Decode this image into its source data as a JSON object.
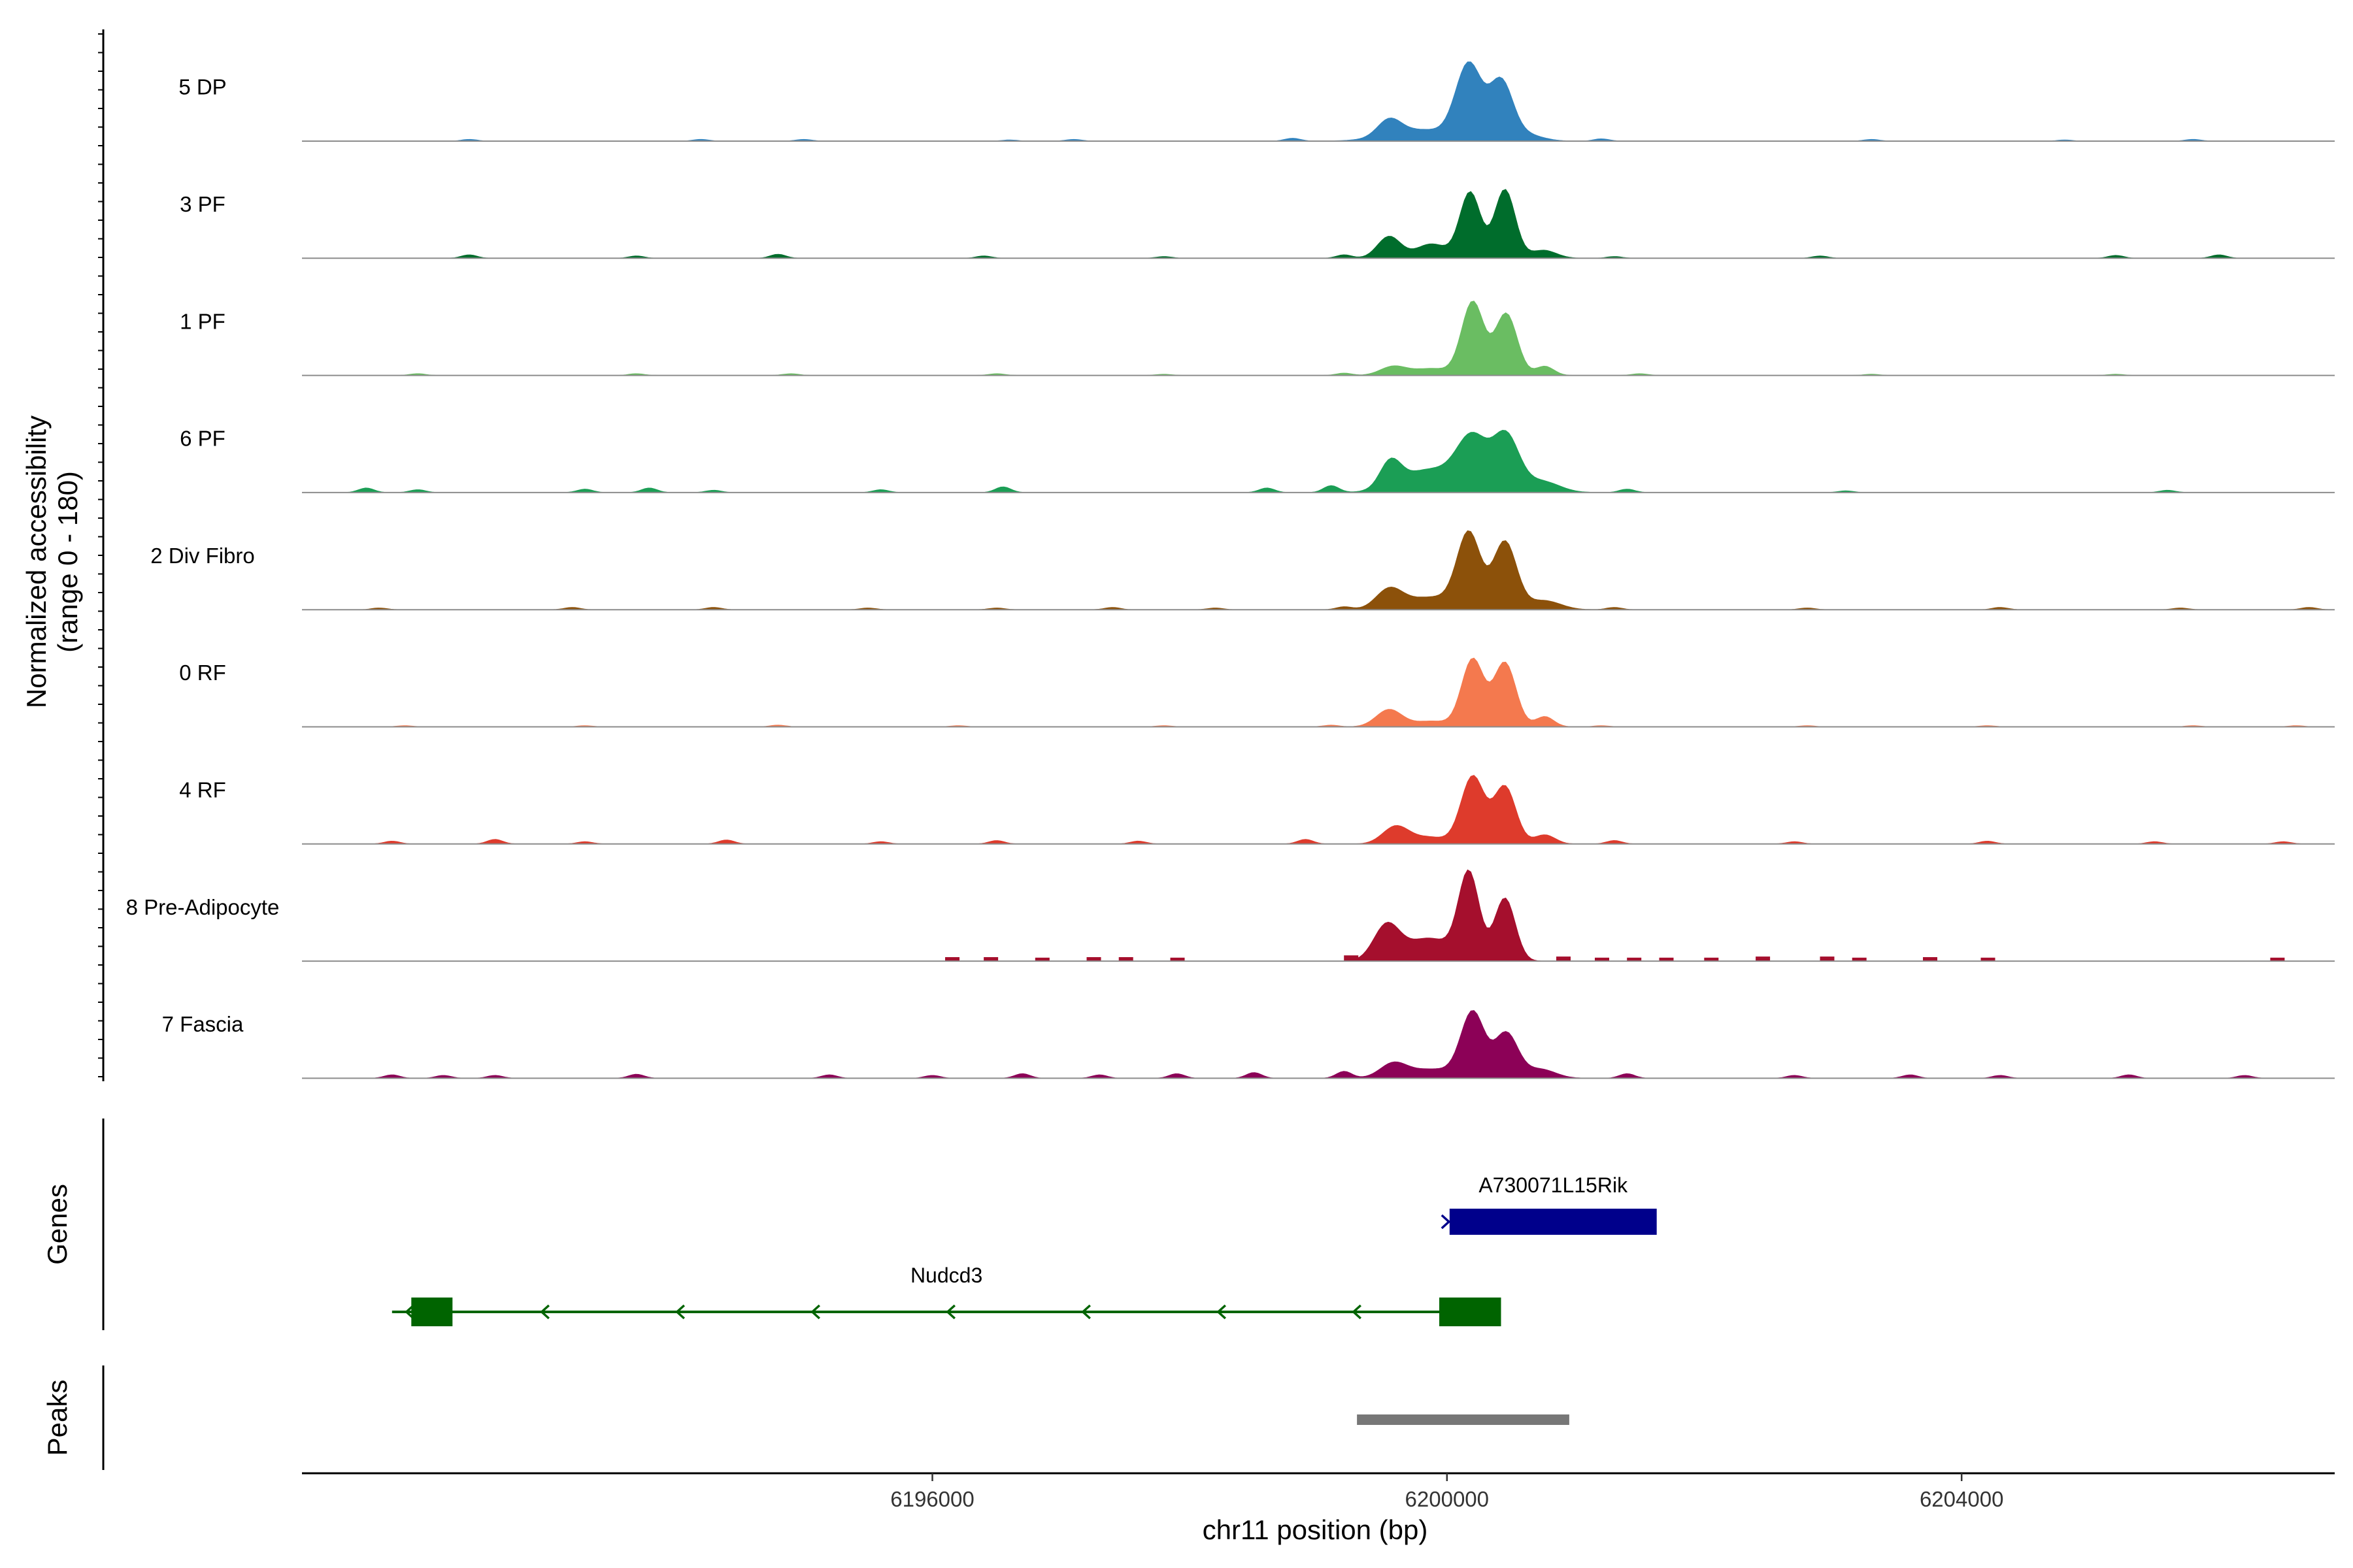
{
  "chart_data": {
    "type": "area",
    "plot": "coverage-tracks",
    "chromosome": "chr11",
    "x_range": [
      6191100,
      6206900
    ],
    "xlabel": "chr11 position (bp)",
    "x_ticks": [
      6196000,
      6200000,
      6204000
    ],
    "x_tick_labels": [
      "6196000",
      "6200000",
      "6204000"
    ],
    "ylabel": "Normalized accessibility",
    "ylabel_range": "(range 0 - 180)",
    "y_range": [
      0,
      180
    ],
    "tracks": [
      {
        "name": "5 DP",
        "color": "#3182bd",
        "peaks": [
          [
            6199550,
            28,
            90
          ],
          [
            6199800,
            20,
            250
          ],
          [
            6200170,
            130,
            100
          ],
          [
            6200420,
            100,
            90
          ],
          [
            6200600,
            12,
            130
          ]
        ],
        "noise": [
          [
            6192400,
            3
          ],
          [
            6194200,
            3
          ],
          [
            6195000,
            3
          ],
          [
            6196600,
            2
          ],
          [
            6197100,
            3
          ],
          [
            6198800,
            5
          ],
          [
            6201200,
            4
          ],
          [
            6203300,
            3
          ],
          [
            6204800,
            2
          ],
          [
            6205800,
            3
          ]
        ]
      },
      {
        "name": "3 PF",
        "color": "#006d2c",
        "peaks": [
          [
            6199550,
            38,
            90
          ],
          [
            6199880,
            25,
            120
          ],
          [
            6200180,
            115,
            80
          ],
          [
            6200450,
            120,
            80
          ],
          [
            6200750,
            14,
            100
          ]
        ],
        "noise": [
          [
            6192400,
            6
          ],
          [
            6193700,
            4
          ],
          [
            6194800,
            7
          ],
          [
            6196400,
            4
          ],
          [
            6197800,
            3
          ],
          [
            6199200,
            6
          ],
          [
            6201300,
            3
          ],
          [
            6202900,
            4
          ],
          [
            6205200,
            5
          ],
          [
            6206000,
            6
          ]
        ]
      },
      {
        "name": "1 PF",
        "color": "#6abd62",
        "peaks": [
          [
            6199580,
            15,
            100
          ],
          [
            6199880,
            12,
            150
          ],
          [
            6200200,
            128,
            85
          ],
          [
            6200460,
            108,
            85
          ],
          [
            6200760,
            16,
            70
          ]
        ],
        "noise": [
          [
            6192000,
            3
          ],
          [
            6193700,
            3
          ],
          [
            6194900,
            3
          ],
          [
            6196500,
            3
          ],
          [
            6197800,
            2
          ],
          [
            6199200,
            4
          ],
          [
            6201500,
            3
          ],
          [
            6203300,
            2
          ],
          [
            6205200,
            2
          ]
        ]
      },
      {
        "name": "6 PF",
        "color": "#1b9e55",
        "peaks": [
          [
            6199560,
            44,
            80
          ],
          [
            6199860,
            40,
            220
          ],
          [
            6200200,
            90,
            120
          ],
          [
            6200460,
            95,
            100
          ],
          [
            6200730,
            20,
            140
          ]
        ],
        "noise": [
          [
            6191600,
            8
          ],
          [
            6192000,
            5
          ],
          [
            6193300,
            6
          ],
          [
            6193800,
            8
          ],
          [
            6194300,
            4
          ],
          [
            6195600,
            5
          ],
          [
            6196550,
            10
          ],
          [
            6198600,
            8
          ],
          [
            6199100,
            12
          ],
          [
            6201400,
            6
          ],
          [
            6203100,
            3
          ],
          [
            6205600,
            4
          ]
        ]
      },
      {
        "name": "2 Div Fibro",
        "color": "#8c510a",
        "peaks": [
          [
            6199550,
            32,
            100
          ],
          [
            6199880,
            22,
            220
          ],
          [
            6200170,
            128,
            90
          ],
          [
            6200450,
            118,
            90
          ],
          [
            6200750,
            16,
            130
          ]
        ],
        "noise": [
          [
            6191700,
            3
          ],
          [
            6193200,
            4
          ],
          [
            6194300,
            4
          ],
          [
            6195500,
            3
          ],
          [
            6196500,
            3
          ],
          [
            6197400,
            4
          ],
          [
            6198200,
            3
          ],
          [
            6199200,
            5
          ],
          [
            6201300,
            4
          ],
          [
            6202800,
            3
          ],
          [
            6204300,
            4
          ],
          [
            6205700,
            3
          ],
          [
            6206700,
            4
          ]
        ]
      },
      {
        "name": "0 RF",
        "color": "#f4794e",
        "peaks": [
          [
            6199550,
            30,
            100
          ],
          [
            6199880,
            10,
            140
          ],
          [
            6200200,
            118,
            85
          ],
          [
            6200450,
            112,
            85
          ],
          [
            6200760,
            18,
            70
          ]
        ],
        "noise": [
          [
            6191900,
            2
          ],
          [
            6193300,
            2
          ],
          [
            6194800,
            3
          ],
          [
            6196200,
            2
          ],
          [
            6197800,
            2
          ],
          [
            6199100,
            3
          ],
          [
            6201200,
            2
          ],
          [
            6202800,
            2
          ],
          [
            6204200,
            2
          ],
          [
            6205800,
            2
          ],
          [
            6206600,
            2
          ]
        ]
      },
      {
        "name": "4 RF",
        "color": "#de3b2c",
        "peaks": [
          [
            6199600,
            30,
            100
          ],
          [
            6199860,
            12,
            140
          ],
          [
            6200200,
            118,
            90
          ],
          [
            6200450,
            100,
            85
          ],
          [
            6200760,
            16,
            80
          ]
        ],
        "noise": [
          [
            6191800,
            5
          ],
          [
            6192600,
            8
          ],
          [
            6193300,
            4
          ],
          [
            6194400,
            7
          ],
          [
            6195600,
            4
          ],
          [
            6196500,
            6
          ],
          [
            6197600,
            5
          ],
          [
            6198900,
            8
          ],
          [
            6201300,
            6
          ],
          [
            6202700,
            4
          ],
          [
            6204200,
            5
          ],
          [
            6205500,
            4
          ],
          [
            6206500,
            4
          ]
        ]
      },
      {
        "name": "8 Pre-Adipocyte",
        "color": "#a50f2d",
        "peaks": [
          [
            6199530,
            60,
            100
          ],
          [
            6199860,
            40,
            180
          ],
          [
            6200170,
            150,
            80
          ],
          [
            6200450,
            110,
            80
          ]
        ],
        "blocks": [
          [
            6196150,
            7
          ],
          [
            6196450,
            7
          ],
          [
            6196850,
            6
          ],
          [
            6197250,
            7
          ],
          [
            6197500,
            7
          ],
          [
            6197900,
            6
          ],
          [
            6199250,
            10
          ],
          [
            6200900,
            8
          ],
          [
            6201200,
            6
          ],
          [
            6201450,
            6
          ],
          [
            6201700,
            6
          ],
          [
            6202050,
            6
          ],
          [
            6202450,
            8
          ],
          [
            6202950,
            8
          ],
          [
            6203200,
            6
          ],
          [
            6203750,
            7
          ],
          [
            6204200,
            6
          ],
          [
            6206450,
            6
          ]
        ]
      },
      {
        "name": "7 Fascia",
        "color": "#8c0157",
        "peaks": [
          [
            6199580,
            22,
            100
          ],
          [
            6199880,
            16,
            220
          ],
          [
            6200200,
            112,
            90
          ],
          [
            6200460,
            78,
            90
          ],
          [
            6200720,
            16,
            120
          ]
        ],
        "noise": [
          [
            6191800,
            6
          ],
          [
            6192200,
            5
          ],
          [
            6192600,
            5
          ],
          [
            6193700,
            7
          ],
          [
            6195200,
            6
          ],
          [
            6196000,
            5
          ],
          [
            6196700,
            8
          ],
          [
            6197300,
            6
          ],
          [
            6197900,
            8
          ],
          [
            6198500,
            10
          ],
          [
            6199200,
            12
          ],
          [
            6201400,
            8
          ],
          [
            6202700,
            5
          ],
          [
            6203600,
            6
          ],
          [
            6204300,
            5
          ],
          [
            6205300,
            6
          ],
          [
            6206200,
            5
          ]
        ]
      }
    ],
    "genes": [
      {
        "name": "A730071L15Rik",
        "strand": "+",
        "color": "#00008b",
        "start": 6200020,
        "end": 6201630
      },
      {
        "name": "Nudcd3",
        "strand": "-",
        "color": "#006400",
        "start": 6191800,
        "end": 6200420,
        "exons": [
          [
            6191950,
            6192270
          ],
          [
            6199940,
            6200420
          ]
        ]
      }
    ],
    "peaks_track": [
      {
        "start": 6199300,
        "end": 6200950,
        "color": "#777777"
      }
    ],
    "side_labels": {
      "genes": "Genes",
      "peaks": "Peaks"
    }
  }
}
